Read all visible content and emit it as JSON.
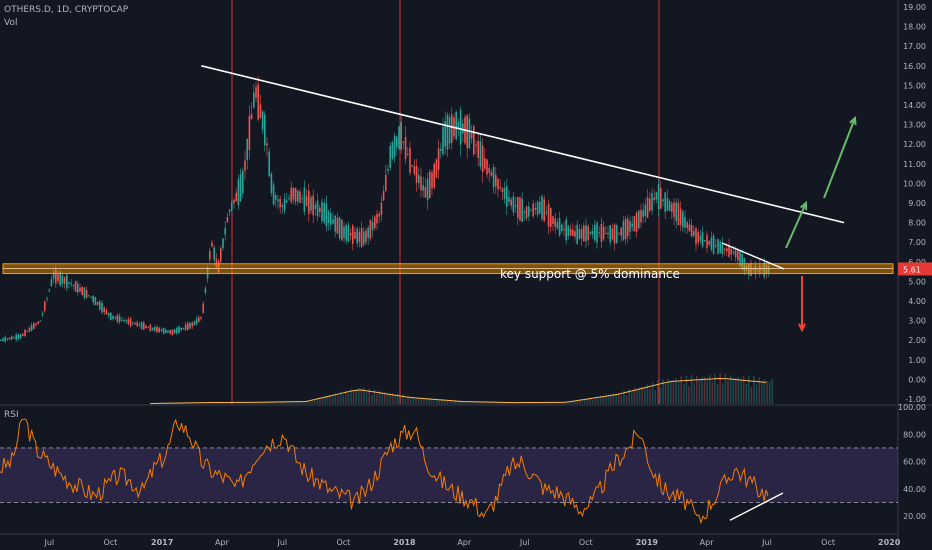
{
  "header": {
    "symbol_line": "OTHERS.D, 1D, CRYPTOCAP",
    "vol_label": "Vol",
    "rsi_label": "RSI"
  },
  "annotations": {
    "support_text": "key support @ 5% dominance",
    "last_price": "5.61"
  },
  "colors": {
    "bg": "#131722",
    "up": "#26a69a",
    "down": "#ef5350",
    "rsi": "#f57c00",
    "rsi_band": "#7e57c2",
    "support": "#ff9800",
    "arrow_up": "#66bb6a",
    "arrow_down": "#f44336"
  },
  "chart_data": {
    "type": "line",
    "title": "OTHERS.D, 1D, CRYPTOCAP",
    "ylabel": "",
    "xlabel": "",
    "ylim": [
      -1.5,
      19.5
    ],
    "y_ticks": [
      "19.00",
      "18.00",
      "17.00",
      "16.00",
      "15.00",
      "14.00",
      "13.00",
      "12.00",
      "11.00",
      "10.00",
      "9.00",
      "8.00",
      "7.00",
      "6.00",
      "5.00",
      "4.00",
      "3.00",
      "2.00",
      "1.00",
      "0.00",
      "-1.00"
    ],
    "x_ticks": [
      "Jul",
      "Oct",
      "2017",
      "Apr",
      "Jul",
      "Oct",
      "2018",
      "Apr",
      "Jul",
      "Oct",
      "2019",
      "Apr",
      "Jul",
      "Oct",
      "2020"
    ],
    "price_series": {
      "name": "OTHERS.D",
      "x": [
        "2016-05-01",
        "2016-06-01",
        "2016-07-01",
        "2016-07-20",
        "2016-08-15",
        "2016-09-15",
        "2016-10-15",
        "2016-11-15",
        "2016-12-15",
        "2017-01-15",
        "2017-02-15",
        "2017-03-01",
        "2017-03-15",
        "2017-03-25",
        "2017-04-10",
        "2017-05-01",
        "2017-05-20",
        "2017-06-05",
        "2017-06-15",
        "2017-07-01",
        "2017-07-15",
        "2017-08-01",
        "2017-09-01",
        "2017-10-01",
        "2017-11-01",
        "2017-11-25",
        "2017-12-10",
        "2017-12-25",
        "2018-01-10",
        "2018-02-01",
        "2018-02-15",
        "2018-03-01",
        "2018-03-20",
        "2018-04-10",
        "2018-05-01",
        "2018-05-20",
        "2018-06-10",
        "2018-07-01",
        "2018-07-25",
        "2018-08-20",
        "2018-09-15",
        "2018-10-15",
        "2018-11-15",
        "2018-12-15",
        "2019-01-15",
        "2019-02-15",
        "2019-03-15",
        "2019-04-15",
        "2019-05-01",
        "2019-05-15",
        "2019-06-01",
        "2019-06-15",
        "2019-07-01",
        "2019-07-10"
      ],
      "values": [
        2.0,
        2.2,
        3.0,
        5.3,
        4.9,
        4.2,
        3.2,
        2.9,
        2.6,
        2.4,
        2.8,
        3.2,
        7.0,
        5.6,
        8.5,
        10.0,
        14.8,
        12.5,
        9.5,
        8.8,
        9.5,
        9.2,
        8.5,
        7.5,
        7.2,
        8.5,
        11.5,
        12.5,
        11.0,
        9.5,
        10.5,
        12.5,
        13.0,
        12.5,
        11.0,
        10.0,
        9.0,
        8.5,
        8.8,
        7.8,
        7.4,
        7.5,
        7.4,
        8.0,
        9.4,
        8.5,
        7.3,
        6.8,
        6.6,
        6.4,
        5.61,
        5.61,
        5.61,
        5.61
      ]
    },
    "volume_series": {
      "name": "Vol",
      "x": [
        "2017-01",
        "2017-04",
        "2017-07",
        "2017-10",
        "2018-01",
        "2018-04",
        "2018-07",
        "2018-10",
        "2019-01",
        "2019-04",
        "2019-05",
        "2019-06",
        "2019-07"
      ],
      "values": [
        0.02,
        0.08,
        0.1,
        0.15,
        0.9,
        0.4,
        0.15,
        0.08,
        0.1,
        0.6,
        1.4,
        1.6,
        1.3
      ]
    },
    "rsi_series": {
      "name": "RSI",
      "ylim": [
        10,
        100
      ],
      "y_ticks": [
        "100.00",
        "80.00",
        "60.00",
        "40.00",
        "20.00"
      ],
      "bands": [
        30,
        70
      ],
      "values": [
        55,
        60,
        93,
        70,
        60,
        52,
        45,
        40,
        35,
        42,
        50,
        46,
        38,
        55,
        65,
        90,
        80,
        60,
        52,
        48,
        40,
        55,
        70,
        75,
        80,
        62,
        50,
        45,
        38,
        35,
        30,
        40,
        55,
        72,
        80,
        84,
        60,
        48,
        40,
        35,
        30,
        20,
        35,
        55,
        60,
        50,
        40,
        38,
        32,
        25,
        30,
        45,
        60,
        70,
        82,
        55,
        40,
        35,
        30,
        16,
        30,
        42,
        55,
        48,
        40,
        35
      ]
    },
    "lines": [
      {
        "name": "descending-trendline",
        "from": [
          "2017-03-01",
          16.0
        ],
        "to": [
          "2019-10-25",
          8.0
        ]
      },
      {
        "name": "support-level",
        "value": 5.6
      }
    ]
  }
}
